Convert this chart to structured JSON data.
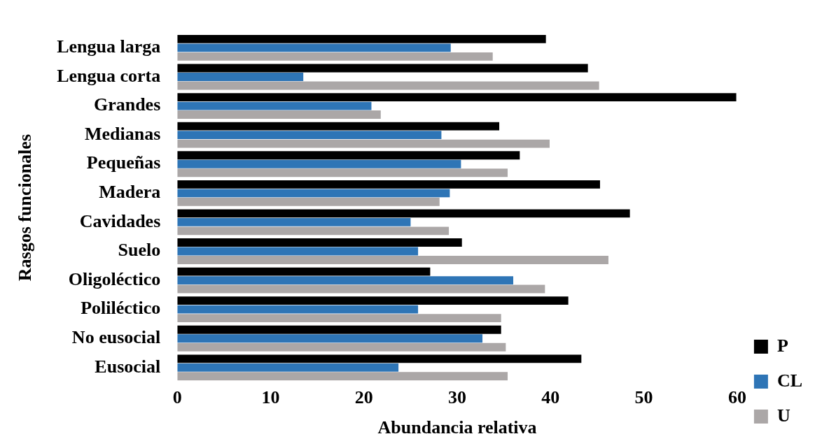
{
  "chart_data": {
    "type": "bar",
    "orientation": "horizontal",
    "xlabel": "Abundancia relativa",
    "ylabel": "Rasgos funcionales",
    "categories": [
      "Lengua larga",
      "Lengua corta",
      "Grandes",
      "Medianas",
      "Pequeñas",
      "Madera",
      "Cavidades",
      "Suelo",
      "Oligoléctico",
      "Poliléctico",
      "No eusocial",
      "Eusocial"
    ],
    "series": [
      {
        "name": "P",
        "color": "#000000",
        "values": [
          39.5,
          44.0,
          59.9,
          34.5,
          36.7,
          45.3,
          48.5,
          30.5,
          27.1,
          41.9,
          34.7,
          43.3
        ]
      },
      {
        "name": "CL",
        "color": "#2e75b6",
        "values": [
          29.3,
          13.5,
          20.8,
          28.3,
          30.4,
          29.2,
          25.0,
          25.8,
          36.0,
          25.8,
          32.7,
          23.7
        ]
      },
      {
        "name": "U",
        "color": "#aba7a7",
        "values": [
          33.8,
          45.2,
          21.8,
          39.9,
          35.4,
          28.1,
          29.1,
          46.2,
          39.4,
          34.7,
          35.2,
          35.4
        ]
      }
    ],
    "xlim": [
      0,
      60
    ],
    "xticks": [
      0,
      10,
      20,
      30,
      40,
      50,
      60
    ],
    "grid": false,
    "legend": "bottom right"
  }
}
